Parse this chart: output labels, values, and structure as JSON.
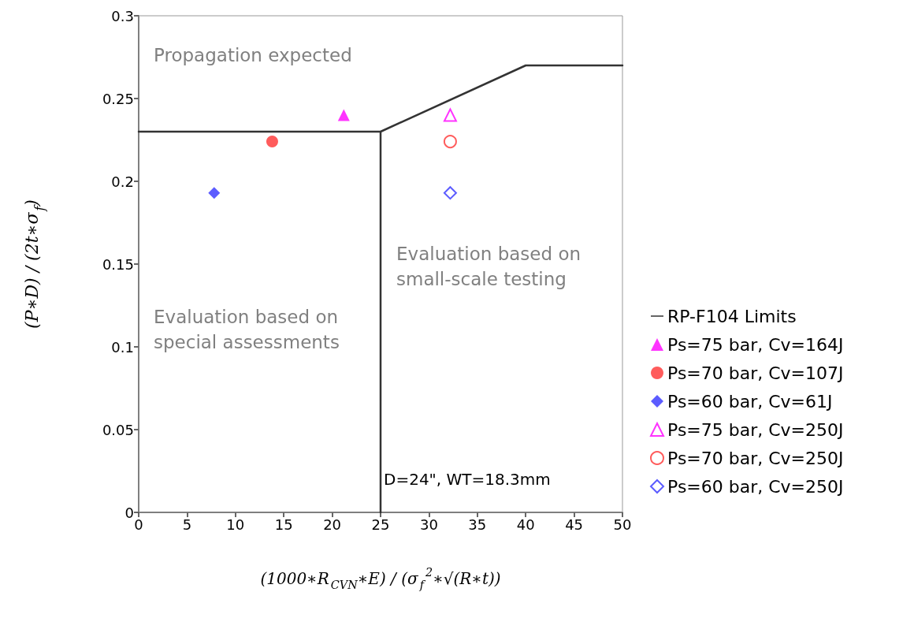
{
  "chart_data": {
    "type": "scatter",
    "xlabel": "(1000∗R$_{CVN}$∗E) / (σ$_{f}$$^{2}$∗√(R∗t))",
    "ylabel": "(P∗D) / (2t∗σ$_{f}$)",
    "xlim": [
      0,
      50
    ],
    "xticks": [
      0,
      5,
      10,
      15,
      20,
      25,
      30,
      35,
      40,
      45,
      50
    ],
    "ylim": [
      0,
      0.3
    ],
    "yticks": [
      0,
      0.05,
      0.1,
      0.15,
      0.2,
      0.25,
      0.3
    ],
    "grid": false,
    "legend": "right",
    "annotations": [
      "Propagation expected",
      "Evaluation based on small-scale testing",
      "Evaluation based on special assessments",
      "D=24\", WT=18.3mm"
    ],
    "series": [
      {
        "name": "RP-F104 Limits",
        "type": "line",
        "color": "#333333",
        "marker": "none",
        "line_style": "solid",
        "x": [
          0,
          25,
          25,
          25,
          40,
          50
        ],
        "values": [
          0.23,
          0.23,
          0,
          0.23,
          0.27,
          0.27
        ]
      },
      {
        "name": "Ps=75 bar, Cv=164J",
        "color": "#ff00ff",
        "marker": "triangle",
        "x": [
          21.2
        ],
        "values": [
          0.24
        ]
      },
      {
        "name": "Ps=70 bar, Cv=107J",
        "color": "#ff3333",
        "marker": "circle",
        "x": [
          13.8
        ],
        "values": [
          0.224
        ]
      },
      {
        "name": "Ps=60 bar, Cv=61J",
        "color": "#3333ff",
        "marker": "diamond",
        "x": [
          7.8
        ],
        "values": [
          0.193
        ]
      },
      {
        "name": "Ps=75 bar, Cv=250J",
        "color": "#ff00ff",
        "marker": "triangle",
        "x": [
          32.2
        ],
        "values": [
          0.24
        ]
      },
      {
        "name": "Ps=70 bar, Cv=250J",
        "color": "#ff3333",
        "marker": "circle",
        "x": [
          32.2
        ],
        "values": [
          0.224
        ]
      },
      {
        "name": "Ps=60 bar, Cv=250J",
        "color": "#3333ff",
        "marker": "diamond",
        "x": [
          32.2
        ],
        "values": [
          0.193
        ]
      }
    ]
  }
}
